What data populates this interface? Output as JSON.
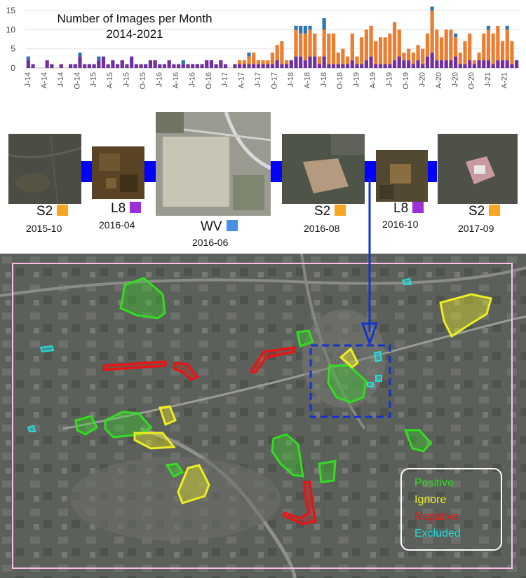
{
  "chart_data": {
    "type": "bar",
    "stacked": true,
    "title_line1": "Number of Images per Month",
    "title_line2": "2014-2021",
    "ylim": [
      0,
      15
    ],
    "yticks": [
      "0",
      "5",
      "10",
      "15"
    ],
    "grid": true,
    "xtick_labels": [
      "J-14",
      "A-14",
      "J-14",
      "O-14",
      "J-15",
      "A-15",
      "J-15",
      "O-15",
      "J-16",
      "A-16",
      "J-16",
      "O-16",
      "J-17",
      "A-17",
      "J-17",
      "O-17",
      "J-18",
      "A-18",
      "J-18",
      "O-18",
      "J-19",
      "A-19",
      "J-19",
      "O-19",
      "J-20",
      "A-20",
      "J-20",
      "O-20",
      "J-21",
      "A-21"
    ],
    "series": [
      {
        "color": "#7030a0",
        "values": [
          2,
          1,
          0,
          0,
          2,
          1,
          0,
          1,
          0,
          1,
          1,
          3,
          1,
          1,
          1,
          2,
          3,
          1,
          2,
          1,
          2,
          1,
          3,
          1,
          1,
          1,
          2,
          2,
          1,
          1,
          2,
          1,
          1,
          1,
          1,
          1,
          1,
          1,
          2,
          2,
          1,
          2,
          1,
          0,
          1,
          1,
          1,
          1,
          1,
          1,
          1,
          1,
          1,
          2,
          1,
          1,
          2,
          3,
          3,
          2,
          3,
          3,
          1,
          3,
          1,
          1,
          1,
          1,
          1,
          2,
          1,
          1,
          2,
          3,
          1,
          1,
          1,
          1,
          2,
          3,
          2,
          2,
          1,
          2,
          1,
          3,
          4,
          2,
          2,
          2,
          2,
          3,
          1,
          1,
          2,
          1,
          2,
          2,
          2,
          1,
          2,
          2,
          2,
          1,
          2
        ]
      },
      {
        "color": "#ed7d31",
        "values": [
          0,
          0,
          0,
          0,
          0,
          0,
          0,
          0,
          0,
          0,
          0,
          0,
          0,
          0,
          0,
          0,
          0,
          0,
          0,
          0,
          0,
          0,
          0,
          0,
          0,
          0,
          0,
          0,
          0,
          0,
          0,
          0,
          0,
          0,
          0,
          0,
          0,
          0,
          0,
          0,
          0,
          0,
          0,
          0,
          0,
          1,
          1,
          2,
          3,
          1,
          1,
          1,
          3,
          4,
          6,
          1,
          0,
          7,
          6,
          7,
          7,
          6,
          2,
          7,
          8,
          8,
          3,
          4,
          2,
          7,
          2,
          7,
          8,
          8,
          6,
          7,
          7,
          8,
          10,
          7,
          2,
          3,
          3,
          4,
          4,
          6,
          11,
          8,
          6,
          8,
          8,
          5,
          3,
          6,
          7,
          1,
          2,
          7,
          8,
          8,
          9,
          5,
          8,
          6,
          0
        ]
      },
      {
        "color": "#2e75b6",
        "values": [
          1,
          0,
          0,
          0,
          0,
          0,
          0,
          0,
          0,
          0,
          0,
          1,
          0,
          0,
          0,
          1,
          0,
          0,
          0,
          0,
          0,
          0,
          0,
          0,
          0,
          0,
          0,
          0,
          0,
          0,
          0,
          0,
          0,
          1,
          0,
          0,
          0,
          0,
          0,
          0,
          0,
          0,
          0,
          0,
          0,
          0,
          0,
          1,
          0,
          0,
          0,
          0,
          0,
          0,
          0,
          0,
          0,
          1,
          2,
          2,
          1,
          0,
          0,
          3,
          0,
          0,
          0,
          0,
          0,
          0,
          0,
          0,
          0,
          0,
          0,
          0,
          0,
          0,
          0,
          0,
          0,
          0,
          0,
          0,
          0,
          0,
          1,
          0,
          0,
          0,
          0,
          1,
          0,
          0,
          0,
          0,
          0,
          0,
          1,
          0,
          0,
          0,
          1,
          0,
          0
        ]
      }
    ]
  },
  "timeline": [
    {
      "sensor": "S2",
      "date": "2015-10",
      "swatch": "#f5a623"
    },
    {
      "sensor": "L8",
      "date": "2016-04",
      "swatch": "#9b30d9"
    },
    {
      "sensor": "WV",
      "date": "2016-06",
      "swatch": "#4a90e2"
    },
    {
      "sensor": "S2",
      "date": "2016-08",
      "swatch": "#f5a623"
    },
    {
      "sensor": "L8",
      "date": "2016-10",
      "swatch": "#9b30d9"
    },
    {
      "sensor": "S2",
      "date": "2017-09",
      "swatch": "#f5a623"
    }
  ],
  "legend": {
    "positive": {
      "label": "Positive",
      "color": "#33dd22"
    },
    "ignore": {
      "label": "Ignore",
      "color": "#eeee22"
    },
    "negative": {
      "label": "Negative",
      "color": "#ee1111"
    },
    "excluded": {
      "label": "Excluded",
      "color": "#22dddd"
    }
  },
  "colors": {
    "connector": "#0000ff",
    "roi_box": "#1133cc",
    "frame": "#ffbbee"
  }
}
